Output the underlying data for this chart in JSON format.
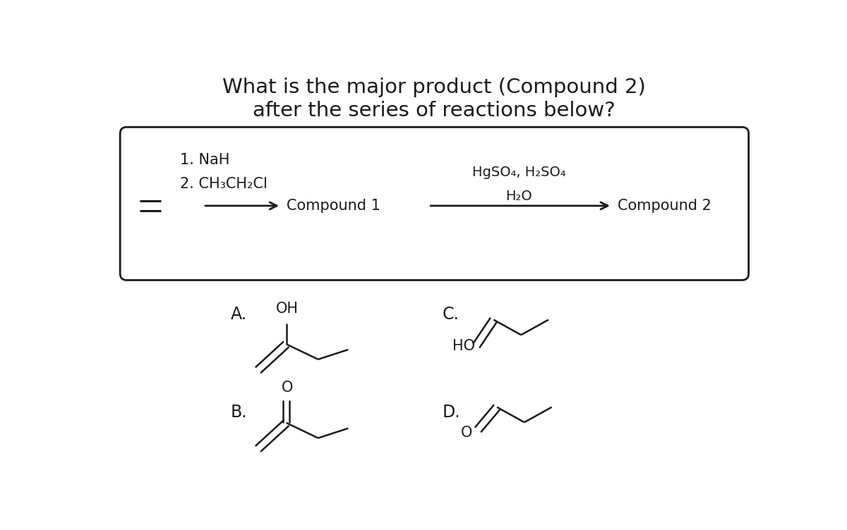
{
  "title_line1": "What is the major product (Compound 2)",
  "title_line2": "after the series of reactions below?",
  "title_fontsize": 21,
  "background": "#ffffff",
  "text_color": "#1a1a1a",
  "reagent1": "1. NaH",
  "reagent2": "2. CH₃CH₂Cl",
  "compound1_label": "Compound 1",
  "reagent3_line1": "HgSO₄, H₂SO₄",
  "reagent3_line2": "H₂O",
  "compound2_label": "Compound 2",
  "option_A": "A.",
  "option_B": "B.",
  "option_C": "C.",
  "option_D": "D.",
  "label_OH_A": "OH",
  "label_HO_C": "HO",
  "label_O_B": "O",
  "label_O_D": "O"
}
